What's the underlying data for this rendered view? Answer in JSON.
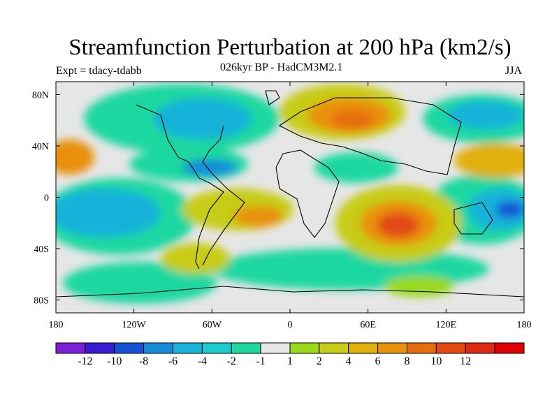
{
  "title": "Streamfunction Perturbation at 200 hPa (km2/s)",
  "subtitle_left": "Expt = tdacy-tdabb",
  "subtitle_center": "026kyr BP - HadCM3M2.1",
  "subtitle_right": "JJA",
  "map": {
    "lat_range": [
      -90,
      90
    ],
    "lon_range": [
      -180,
      180
    ],
    "lat_ticks": [
      {
        "value": 80,
        "label": "80N"
      },
      {
        "value": 40,
        "label": "40N"
      },
      {
        "value": 0,
        "label": "0"
      },
      {
        "value": -40,
        "label": "40S"
      },
      {
        "value": -80,
        "label": "80S"
      }
    ],
    "lon_ticks": [
      {
        "value": -180,
        "label": "180"
      },
      {
        "value": -120,
        "label": "120W"
      },
      {
        "value": -60,
        "label": "60W"
      },
      {
        "value": 0,
        "label": "0"
      },
      {
        "value": 60,
        "label": "60E"
      },
      {
        "value": 120,
        "label": "120E"
      },
      {
        "value": 180,
        "label": "180"
      }
    ]
  },
  "colorbar": {
    "colors": [
      "#7b1fd8",
      "#3b1ad6",
      "#1653d4",
      "#168bd9",
      "#19b2d9",
      "#1ccdd0",
      "#1fd8a0",
      "#e6e6e6",
      "#9ad81a",
      "#c7cc14",
      "#e0b00d",
      "#e9900c",
      "#e66d0d",
      "#e24a12",
      "#df2a13",
      "#e00000"
    ],
    "labels": [
      "-12",
      "-10",
      "-8",
      "-6",
      "-4",
      "-2",
      "-1",
      "1",
      "2",
      "4",
      "6",
      "8",
      "10",
      "12"
    ]
  }
}
